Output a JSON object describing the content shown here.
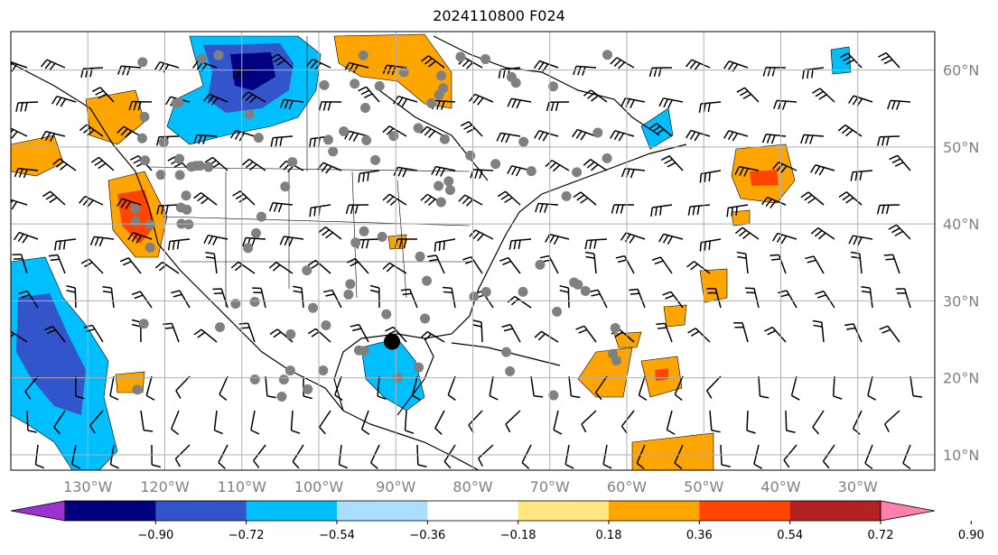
{
  "title": "2024110800 F024",
  "map": {
    "lon_range": [
      -140,
      -20
    ],
    "lat_range": [
      8,
      65
    ],
    "lon_ticks": [
      -130,
      -120,
      -110,
      -100,
      -90,
      -80,
      -70,
      -60,
      -50,
      -40,
      -30
    ],
    "lon_labels": [
      "130°W",
      "120°W",
      "110°W",
      "100°W",
      "90°W",
      "80°W",
      "70°W",
      "60°W",
      "50°W",
      "40°W",
      "30°W"
    ],
    "lat_ticks": [
      10,
      20,
      30,
      40,
      50,
      60
    ],
    "lat_labels": [
      "10°N",
      "20°N",
      "30°N",
      "40°N",
      "50°N",
      "60°N"
    ],
    "grid": true,
    "storm_center": {
      "lon": -90.5,
      "lat": 24.7
    }
  },
  "colorbar": {
    "levels": [
      -0.9,
      -0.72,
      -0.54,
      -0.36,
      -0.18,
      0.18,
      0.36,
      0.54,
      0.72,
      0.9
    ],
    "labels": [
      "−0.90",
      "−0.72",
      "−0.54",
      "−0.36",
      "−0.18",
      "0.18",
      "0.36",
      "0.54",
      "0.72",
      "0.90"
    ],
    "colors": [
      "#9933cc",
      "#000080",
      "#3355cc",
      "#00bfff",
      "#aadfff",
      "#ffffff",
      "#ffe680",
      "#ffa500",
      "#ff4500",
      "#b22222",
      "#ff80aa"
    ]
  }
}
